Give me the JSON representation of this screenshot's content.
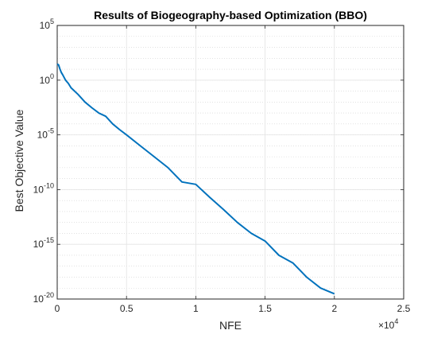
{
  "chart_data": {
    "type": "line",
    "title": "Results of Biogeography-based Optimization (BBO)",
    "xlabel": "NFE",
    "ylabel": "Best Objective Value",
    "x_scale_note": "×10",
    "x_scale_exponent": "4",
    "xlim": [
      0,
      25000
    ],
    "ylim": [
      1e-20,
      100000.0
    ],
    "y_scale": "log",
    "grid": true,
    "minor_grid": true,
    "x_ticks": [
      {
        "value": 0,
        "label": "0"
      },
      {
        "value": 5000,
        "label": "0.5"
      },
      {
        "value": 10000,
        "label": "1"
      },
      {
        "value": 15000,
        "label": "1.5"
      },
      {
        "value": 20000,
        "label": "2"
      },
      {
        "value": 25000,
        "label": "2.5"
      }
    ],
    "y_ticks": [
      {
        "value": 100000.0,
        "base": "10",
        "exp": "5"
      },
      {
        "value": 1.0,
        "base": "10",
        "exp": "0"
      },
      {
        "value": 1e-05,
        "base": "10",
        "exp": "-5"
      },
      {
        "value": 1e-10,
        "base": "10",
        "exp": "-10"
      },
      {
        "value": 1e-15,
        "base": "10",
        "exp": "-15"
      },
      {
        "value": 1e-20,
        "base": "10",
        "exp": "-20"
      }
    ],
    "series": [
      {
        "color": "#0072bd",
        "points": [
          [
            0,
            30.0
          ],
          [
            100,
            25.0
          ],
          [
            200,
            10.0
          ],
          [
            300,
            5.0
          ],
          [
            400,
            3.0
          ],
          [
            600,
            1.0
          ],
          [
            800,
            0.5
          ],
          [
            1000,
            0.2
          ],
          [
            1500,
            0.05
          ],
          [
            2000,
            0.01
          ],
          [
            2500,
            0.003
          ],
          [
            3000,
            0.001
          ],
          [
            3500,
            0.0005
          ],
          [
            4000,
            0.0001
          ],
          [
            4500,
            3e-05
          ],
          [
            5000,
            1e-05
          ],
          [
            6000,
            1e-06
          ],
          [
            7000,
            1e-07
          ],
          [
            8000,
            1e-08
          ],
          [
            9000,
            5e-10
          ],
          [
            10000,
            3e-10
          ],
          [
            11000,
            2e-11
          ],
          [
            12000,
            1.5e-12
          ],
          [
            13000,
            1e-13
          ],
          [
            14000,
            1e-14
          ],
          [
            15000,
            2e-15
          ],
          [
            16000,
            1e-16
          ],
          [
            17000,
            2e-17
          ],
          [
            18000,
            1e-18
          ],
          [
            19000,
            1e-19
          ],
          [
            20000,
            3e-20
          ]
        ]
      }
    ]
  }
}
